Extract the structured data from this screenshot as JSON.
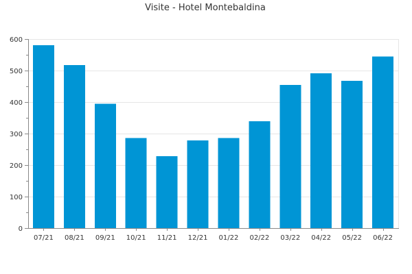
{
  "chart_data": {
    "type": "bar",
    "title": "Visite - Hotel Montebaldina",
    "xlabel": "",
    "ylabel": "",
    "categories": [
      "07/21",
      "08/21",
      "09/21",
      "10/21",
      "11/21",
      "12/21",
      "01/22",
      "02/22",
      "03/22",
      "04/22",
      "05/22",
      "06/22"
    ],
    "values": [
      580,
      517,
      395,
      286,
      228,
      278,
      286,
      339,
      454,
      491,
      467,
      545
    ],
    "ylim": [
      0,
      600
    ],
    "yticks": [
      "0",
      "100",
      "200",
      "300",
      "400",
      "500",
      "600"
    ],
    "grid": true,
    "legend": "none",
    "bar_color": "#0095d5"
  }
}
